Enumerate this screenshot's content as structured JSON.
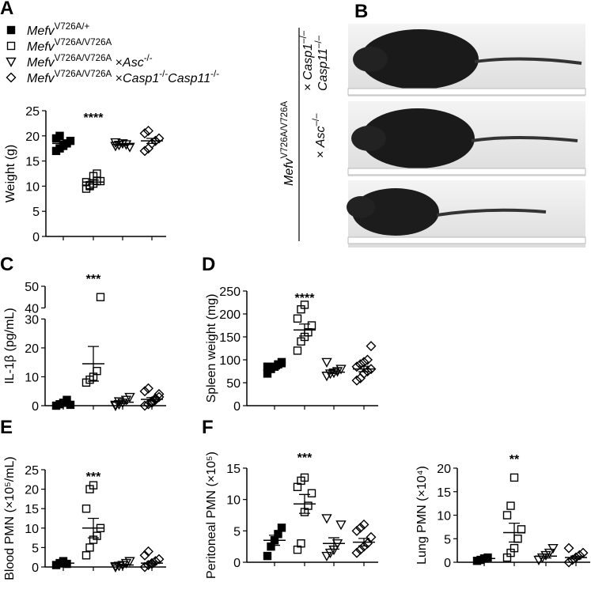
{
  "legend": [
    {
      "marker": "filled-square",
      "parts": [
        {
          "t": "Mefv",
          "i": true
        },
        {
          "t": "V726A/+",
          "sup": true
        }
      ]
    },
    {
      "marker": "square",
      "parts": [
        {
          "t": "Mefv",
          "i": true
        },
        {
          "t": "V726A/V726A",
          "sup": true
        }
      ]
    },
    {
      "marker": "triangle",
      "parts": [
        {
          "t": "Mefv",
          "i": true
        },
        {
          "t": "V726A/V726A",
          "sup": true
        },
        {
          "t": " ×"
        },
        {
          "t": "Asc",
          "i": true
        },
        {
          "t": "-/-",
          "sup": true
        }
      ]
    },
    {
      "marker": "diamond",
      "parts": [
        {
          "t": "Mefv",
          "i": true
        },
        {
          "t": "V726A/V726A",
          "sup": true
        },
        {
          "t": " ×"
        },
        {
          "t": "Casp1",
          "i": true
        },
        {
          "t": "-/-",
          "sup": true
        },
        {
          "t": "Casp11",
          "i": true
        },
        {
          "t": "-/-",
          "sup": true
        }
      ]
    }
  ],
  "photo_panel": {
    "panel": "B",
    "genotype": {
      "parts": [
        {
          "t": "Mefv",
          "i": true
        },
        {
          "t": "V726A/V726A",
          "sup": true
        }
      ]
    },
    "rows": [
      [
        {
          "parts": [
            {
              "t": "× "
            },
            {
              "t": "Casp1",
              "i": true
            },
            {
              "t": "–/–",
              "sup": true
            }
          ]
        },
        {
          "parts": [
            {
              "t": "Casp11",
              "i": true
            },
            {
              "t": "–/–",
              "sup": true
            }
          ]
        }
      ],
      [
        {
          "parts": [
            {
              "t": "× "
            },
            {
              "t": "Asc",
              "i": true
            },
            {
              "t": "–/–",
              "sup": true
            }
          ]
        }
      ]
    ]
  },
  "chart_data": [
    {
      "type": "dot",
      "panel": "A",
      "ylabel": "Weight (g)",
      "ylim": [
        0,
        25
      ],
      "yticks": [
        0,
        5,
        10,
        15,
        20,
        25
      ],
      "significance": "****",
      "significance_group": 1,
      "groups": [
        {
          "values": [
            17,
            17.5,
            18,
            18.5,
            19,
            19.5,
            20,
            18.3
          ],
          "mean": 18.5,
          "sem": 0.4
        },
        {
          "values": [
            9.5,
            10,
            10.5,
            11,
            11,
            10.8,
            10.2,
            12,
            12.5
          ],
          "mean": 10.8,
          "sem": 0.4
        },
        {
          "values": [
            18,
            18.2,
            18.5,
            18.3,
            17.8,
            18.7
          ],
          "mean": 18.3,
          "sem": 0.2
        },
        {
          "values": [
            17,
            17.5,
            18.5,
            19,
            19.5,
            20.5,
            21
          ],
          "mean": 19,
          "sem": 0.5
        }
      ]
    },
    {
      "type": "dot",
      "panel": "C",
      "ylabel": "IL-1β (pg/mL)",
      "ylim": [
        0,
        50
      ],
      "yticks": [
        0,
        10,
        20,
        30,
        40,
        50
      ],
      "axis_break": [
        30,
        40
      ],
      "significance": "***",
      "significance_group": 1,
      "groups": [
        {
          "values": [
            0,
            0.5,
            1,
            2,
            0.3
          ],
          "mean": 1,
          "sem": 0.5
        },
        {
          "values": [
            8,
            9,
            10,
            12,
            45
          ],
          "mean": 14.5,
          "sem": 6
        },
        {
          "values": [
            0,
            0.5,
            1,
            2,
            3,
            0.3,
            1.5
          ],
          "mean": 1.2,
          "sem": 0.5
        },
        {
          "values": [
            0,
            0.5,
            1,
            2,
            3,
            5,
            6,
            1.5,
            2.5,
            4
          ],
          "mean": 2.2,
          "sem": 0.6
        }
      ]
    },
    {
      "type": "dot",
      "panel": "D",
      "ylabel": "Spleen weight (mg)",
      "ylim": [
        0,
        250
      ],
      "yticks": [
        0,
        50,
        100,
        150,
        200,
        250
      ],
      "significance": "****",
      "significance_group": 1,
      "groups": [
        {
          "values": [
            70,
            80,
            85,
            90,
            95,
            85
          ],
          "mean": 85,
          "sem": 5
        },
        {
          "values": [
            120,
            140,
            150,
            160,
            175,
            190,
            210,
            220
          ],
          "mean": 165,
          "sem": 13
        },
        {
          "values": [
            65,
            70,
            72,
            75,
            80,
            95
          ],
          "mean": 73,
          "sem": 3
        },
        {
          "values": [
            55,
            60,
            70,
            75,
            80,
            85,
            90,
            95,
            100,
            130
          ],
          "mean": 80,
          "sem": 6
        }
      ]
    },
    {
      "type": "dot",
      "panel": "E",
      "ylabel": "Blood PMN (×10⁵/mL)",
      "ylim": [
        0,
        25
      ],
      "yticks": [
        0,
        5,
        10,
        15,
        20,
        25
      ],
      "significance": "***",
      "significance_group": 1,
      "groups": [
        {
          "values": [
            0.5,
            1,
            1.5,
            0.8
          ],
          "mean": 1,
          "sem": 0.3
        },
        {
          "values": [
            3,
            5,
            7,
            8,
            10,
            15,
            20,
            21
          ],
          "mean": 10,
          "sem": 2.5
        },
        {
          "values": [
            0,
            0.3,
            0.5,
            1,
            1.5,
            0.2
          ],
          "mean": 0.5,
          "sem": 0.2
        },
        {
          "values": [
            0,
            0.5,
            1,
            1.5,
            2,
            3,
            4,
            0.8
          ],
          "mean": 1,
          "sem": 0.4
        }
      ]
    },
    {
      "type": "dot",
      "panel": "F",
      "ylabel": "Peritoneal PMN (×10⁵)",
      "ylim": [
        0,
        15
      ],
      "yticks": [
        0,
        5,
        10,
        15
      ],
      "significance": "***",
      "significance_group": 1,
      "groups": [
        {
          "values": [
            1,
            2.5,
            3.5,
            4.5,
            5.5
          ],
          "mean": 3.5,
          "sem": 0.8
        },
        {
          "values": [
            2,
            3,
            8,
            9,
            11,
            12,
            13,
            13.5
          ],
          "mean": 9.3,
          "sem": 1.5
        },
        {
          "values": [
            1,
            1.5,
            2,
            3,
            6,
            7
          ],
          "mean": 3,
          "sem": 0.9
        },
        {
          "values": [
            1.5,
            2,
            2.5,
            3,
            4,
            5,
            5.5,
            6
          ],
          "mean": 3.2,
          "sem": 0.6
        }
      ]
    },
    {
      "type": "dot",
      "ylabel": "Lung PMN (×10⁴)",
      "ylim": [
        0,
        20
      ],
      "yticks": [
        0,
        5,
        10,
        15,
        20
      ],
      "significance": "**",
      "significance_group": 1,
      "groups": [
        {
          "values": [
            0.3,
            0.5,
            0.8,
            1
          ],
          "mean": 0.8,
          "sem": 0.2
        },
        {
          "values": [
            1,
            2,
            3,
            5,
            7,
            10,
            12,
            18
          ],
          "mean": 6.3,
          "sem": 2
        },
        {
          "values": [
            0.5,
            1,
            1.5,
            2,
            3
          ],
          "mean": 1.3,
          "sem": 0.4
        },
        {
          "values": [
            0,
            0.5,
            1,
            1.5,
            2,
            3
          ],
          "mean": 1,
          "sem": 0.3
        }
      ]
    }
  ]
}
